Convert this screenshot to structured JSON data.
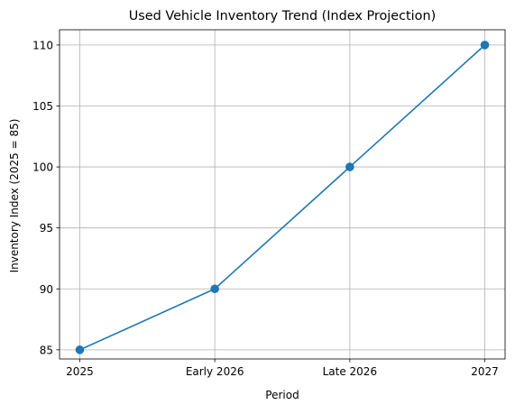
{
  "chart_data": {
    "type": "line",
    "title": "Used Vehicle Inventory Trend (Index Projection)",
    "xlabel": "Period",
    "ylabel": "Inventory Index (2025 = 85)",
    "categories": [
      "2025",
      "Early 2026",
      "Late 2026",
      "2027"
    ],
    "series": [
      {
        "values": [
          85,
          90,
          100,
          110
        ],
        "color": "#1f77b4",
        "marker": "circle"
      }
    ],
    "ylim": [
      84.25,
      111.25
    ],
    "yticks": [
      85,
      90,
      95,
      100,
      105,
      110
    ],
    "grid": true,
    "legend": "none"
  }
}
